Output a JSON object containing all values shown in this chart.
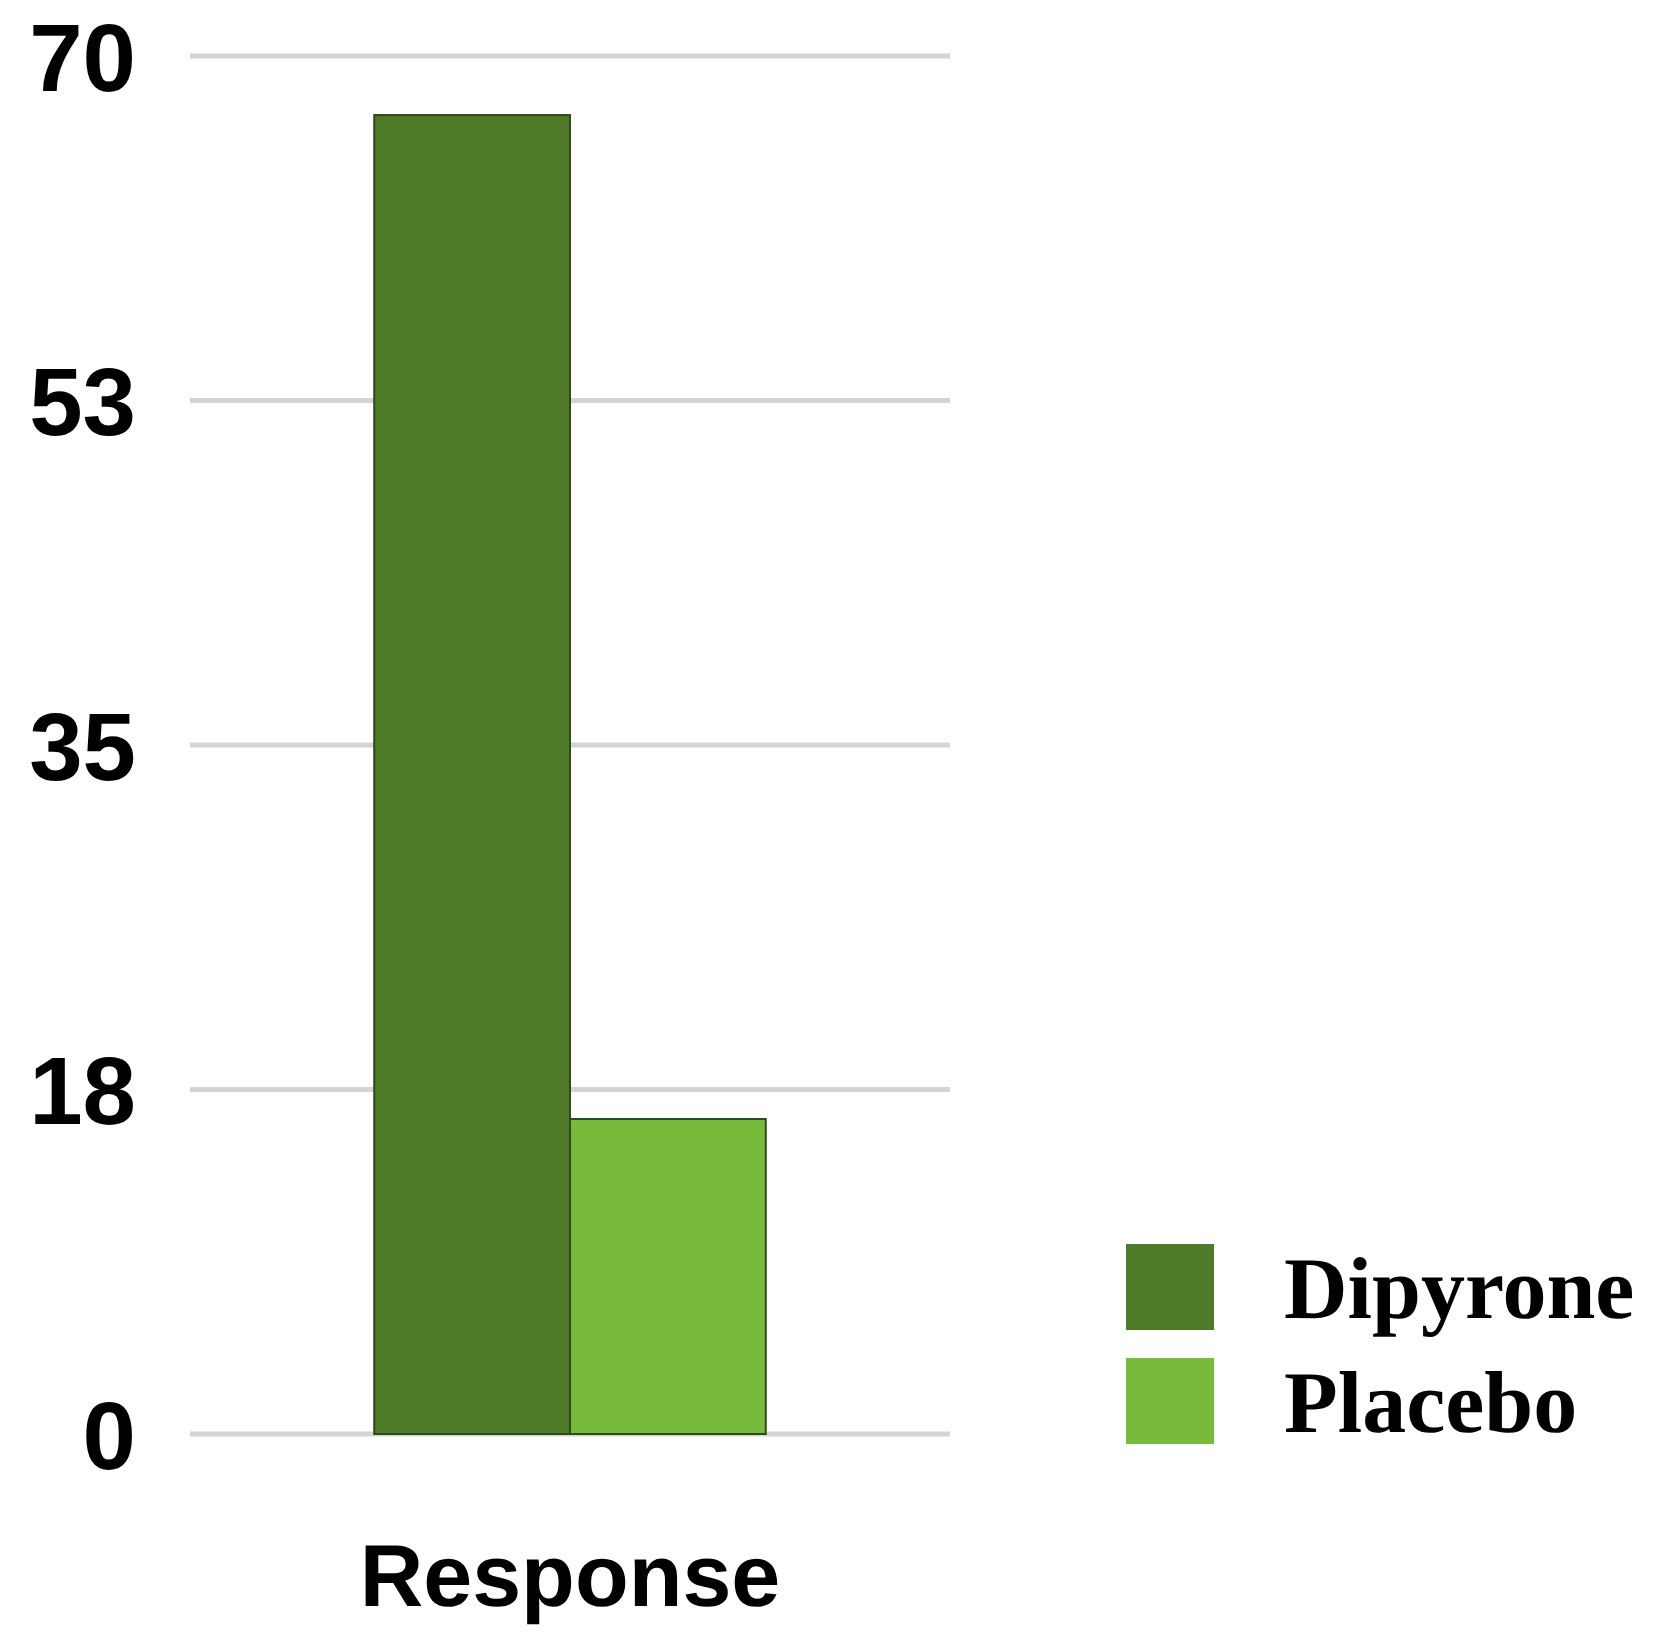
{
  "chart_data": {
    "type": "bar",
    "categories": [
      "Response"
    ],
    "series": [
      {
        "name": "Dipyrone",
        "color": "#4e7a2a",
        "values": [
          67
        ]
      },
      {
        "name": "Placebo",
        "color": "#78bb3c",
        "values": [
          16
        ]
      }
    ],
    "ylim": [
      0,
      70
    ],
    "yticks": [
      0,
      {
        "value": 17.5,
        "label": "18"
      },
      35,
      {
        "value": 52.5,
        "label": "53"
      },
      70
    ],
    "grid": "y",
    "legend": "bottom right"
  }
}
